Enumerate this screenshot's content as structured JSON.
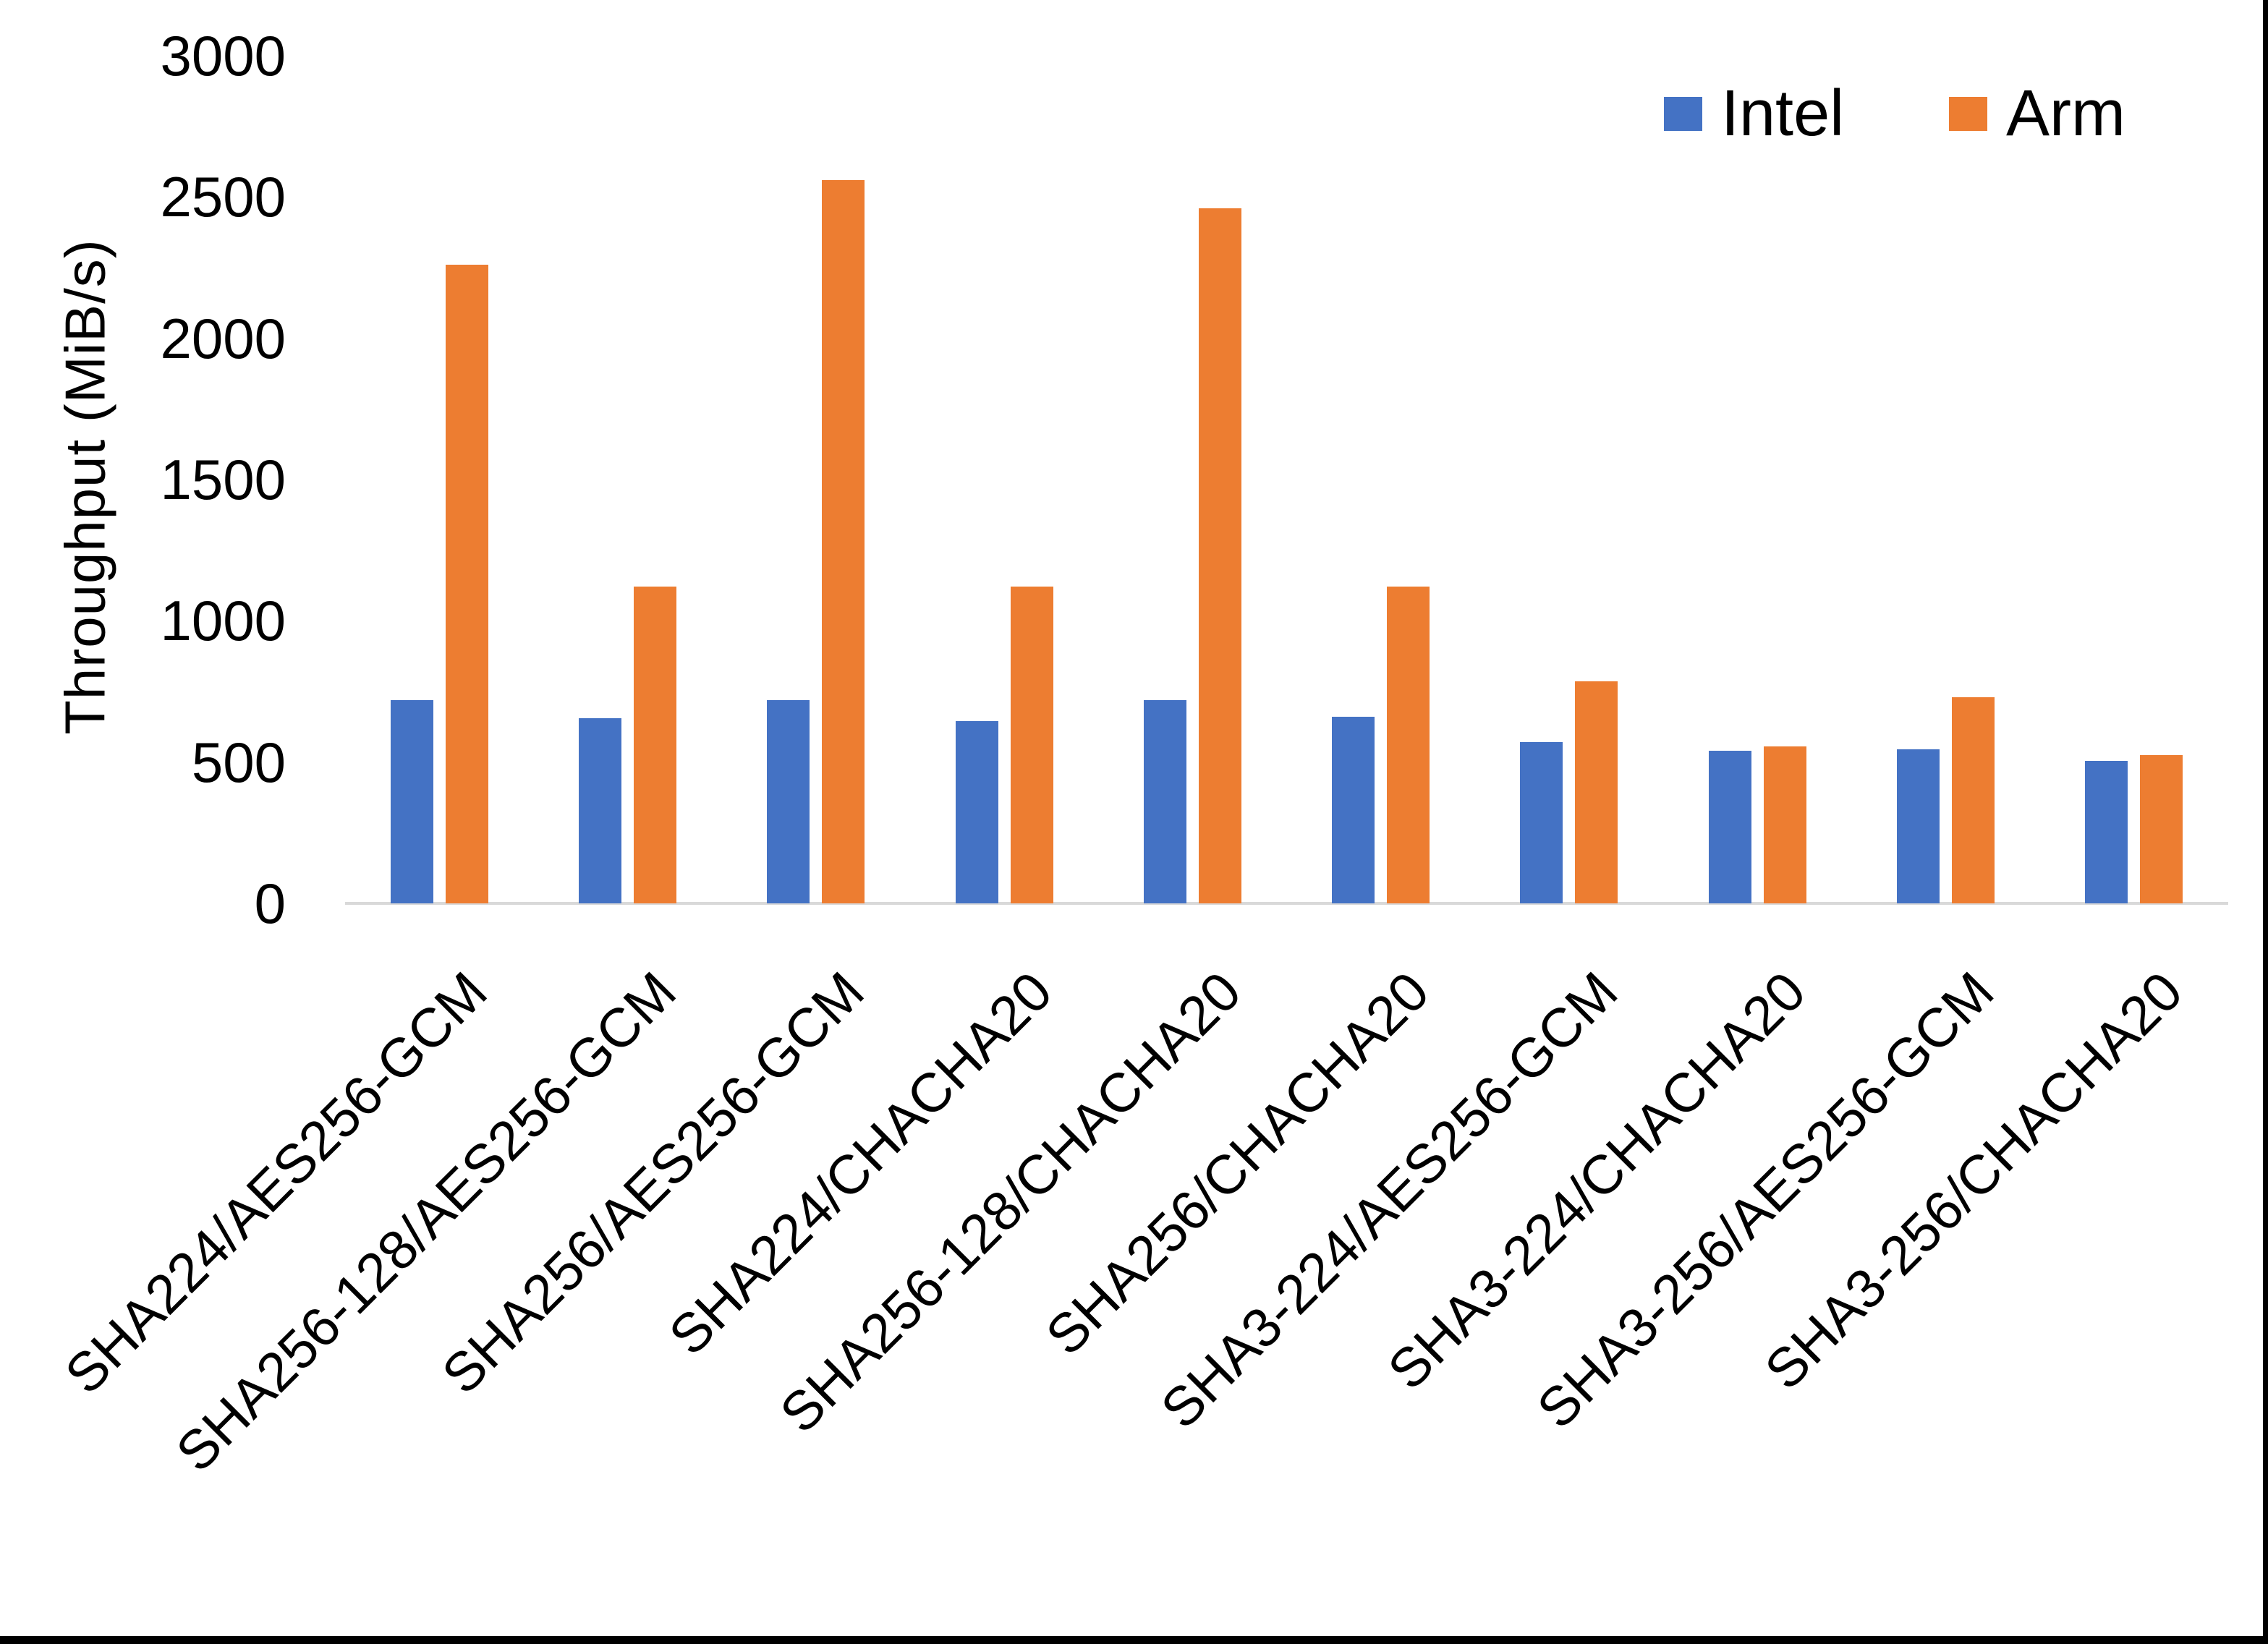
{
  "figure": {
    "background": "#ffffff",
    "frame_color": "#000000",
    "axis_line_color": "#d9d9d9",
    "text_color": "#000000"
  },
  "chart_data": {
    "type": "bar",
    "title": "",
    "xlabel": "",
    "ylabel": "Throughput (MiB/s)",
    "ylim": [
      0,
      3000
    ],
    "yticks": [
      0,
      500,
      1000,
      1500,
      2000,
      2500,
      3000
    ],
    "grid": false,
    "legend_position": "top-right",
    "x_label_rotation_deg": 45,
    "categories": [
      "SHA224/AES256-GCM",
      "SHA256-128/AES256-GCM",
      "SHA256/AES256-GCM",
      "SHA224/CHACHA20",
      "SHA256-128/CHACHA20",
      "SHA256/CHACHA20",
      "SHA3-224/AES256-GCM",
      "SHA3-224/CHACHA20",
      "SHA3-256/AES256-GCM",
      "SHA3-256/CHACHA20"
    ],
    "series": [
      {
        "name": "Intel",
        "color": "#4472c4",
        "values": [
          720,
          655,
          720,
          645,
          720,
          660,
          570,
          540,
          545,
          505
        ]
      },
      {
        "name": "Arm",
        "color": "#ed7d31",
        "values": [
          2260,
          1120,
          2560,
          1120,
          2460,
          1120,
          785,
          555,
          730,
          525
        ]
      }
    ]
  }
}
